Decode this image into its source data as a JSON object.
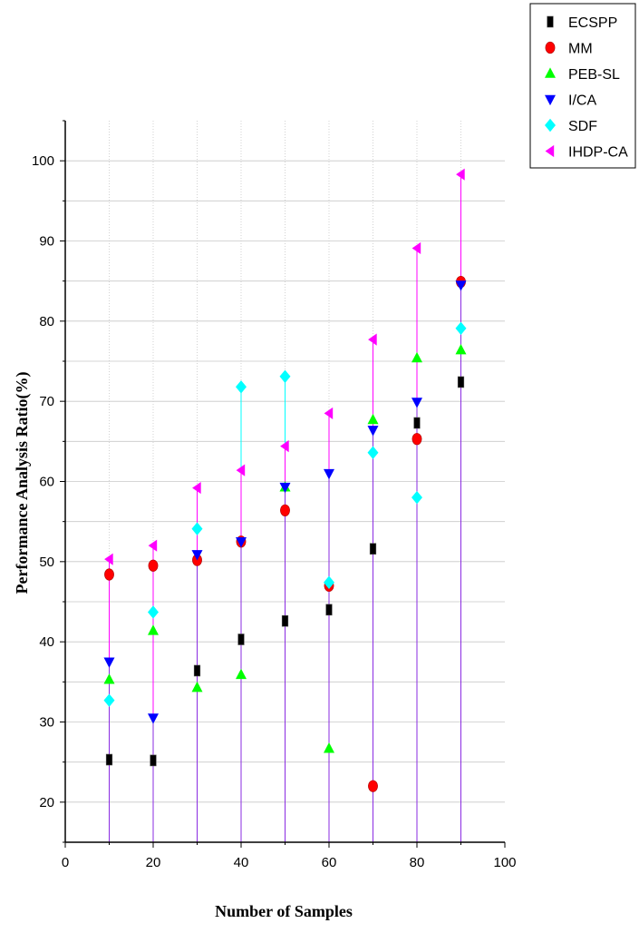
{
  "chart_data": {
    "type": "scatter",
    "xlabel": "Number of Samples",
    "ylabel": "Performance Analysis Ratio(%)",
    "xlim": [
      0,
      100
    ],
    "ylim": [
      15,
      105
    ],
    "x_ticks": [
      0,
      20,
      40,
      60,
      80,
      100
    ],
    "y_ticks": [
      20,
      30,
      40,
      50,
      60,
      70,
      80,
      90,
      100
    ],
    "grid": true,
    "legend_position": "top-right, outside plot",
    "x": [
      10,
      20,
      30,
      40,
      50,
      60,
      70,
      80,
      90
    ],
    "series": [
      {
        "name": "ECSPP",
        "marker": "square",
        "color": "#000000",
        "values": [
          25.3,
          25.2,
          36.4,
          40.3,
          42.6,
          44.0,
          51.6,
          67.3,
          72.4
        ]
      },
      {
        "name": "MM",
        "marker": "circle",
        "color": "#ff0000",
        "values": [
          48.4,
          49.5,
          50.2,
          52.5,
          56.4,
          47.0,
          22.0,
          65.3,
          84.9
        ]
      },
      {
        "name": "PEB-SL",
        "marker": "triangle-up",
        "color": "#00ff00",
        "values": [
          35.3,
          41.4,
          34.3,
          35.9,
          59.3,
          26.7,
          67.7,
          75.4,
          76.4
        ]
      },
      {
        "name": "I/CA",
        "marker": "triangle-down",
        "color": "#0000ff",
        "values": [
          37.5,
          30.5,
          50.9,
          52.5,
          59.3,
          61.0,
          66.4,
          69.9,
          84.5
        ]
      },
      {
        "name": "SDF",
        "marker": "diamond",
        "color": "#00ffff",
        "values": [
          32.7,
          43.7,
          54.1,
          71.8,
          73.1,
          47.4,
          63.6,
          58.0,
          79.1
        ]
      },
      {
        "name": "IHDP-CA",
        "marker": "triangle-left",
        "color": "#ff00ff",
        "values": [
          50.3,
          52.0,
          59.2,
          61.4,
          64.4,
          68.5,
          77.7,
          89.1,
          98.3
        ]
      }
    ],
    "stems": [
      {
        "color": "#ff0000",
        "tops": [
          48.4,
          49.5,
          50.2,
          52.5,
          56.4,
          47.0,
          22.0,
          65.3,
          84.9
        ]
      },
      {
        "color": "#00ffff",
        "tops": [
          32.7,
          43.7,
          54.1,
          71.8,
          73.1,
          47.4,
          63.6,
          58.0,
          79.1
        ]
      },
      {
        "color": "#ff00ff",
        "tops": [
          50.3,
          52.0,
          59.2,
          61.4,
          64.4,
          68.5,
          77.7,
          89.1,
          98.3
        ]
      },
      {
        "color": "#8a2be2",
        "tops": [
          37.5,
          30.5,
          50.9,
          52.5,
          59.3,
          61.0,
          66.4,
          69.9,
          84.5
        ]
      }
    ]
  }
}
